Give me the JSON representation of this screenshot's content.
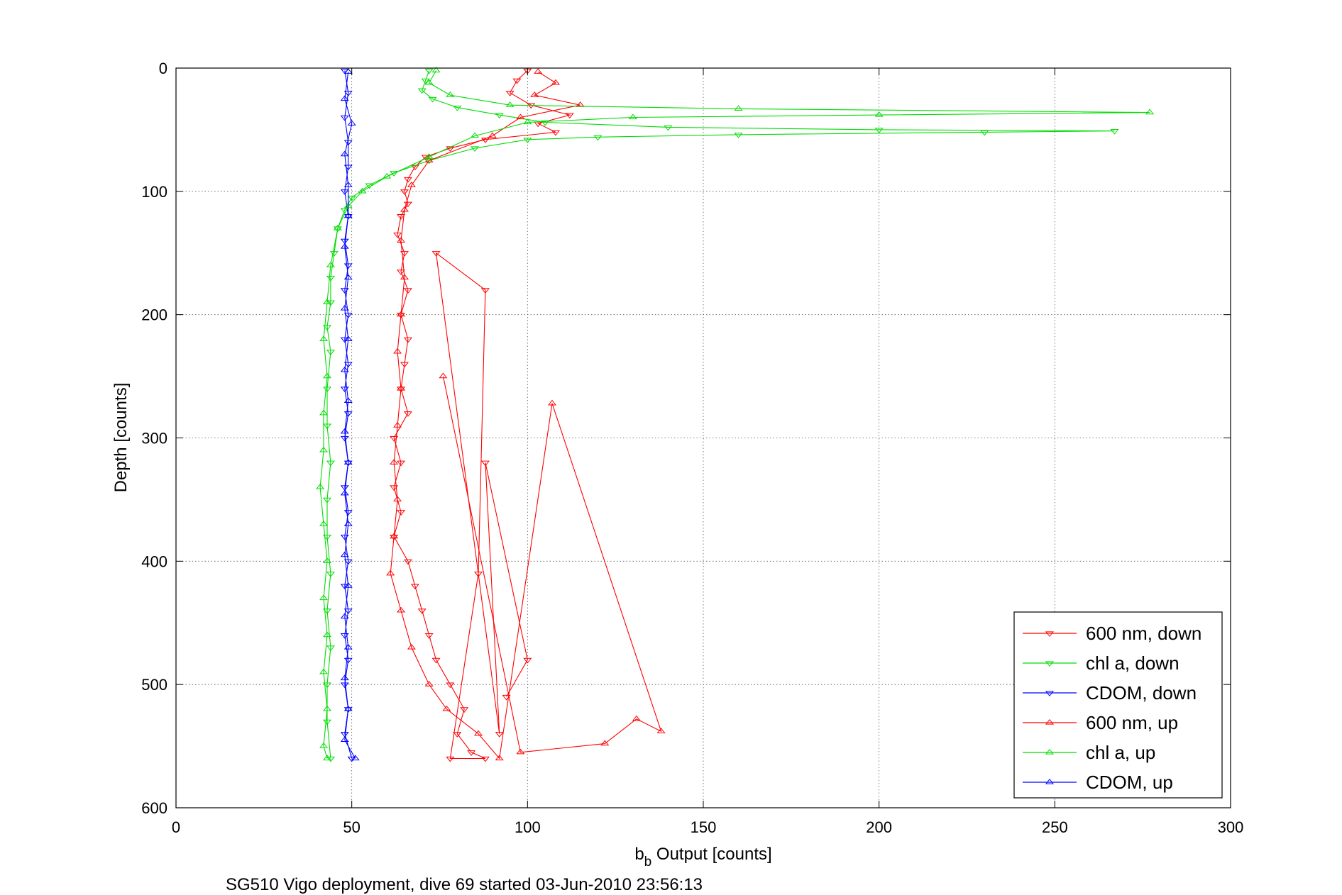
{
  "chart_data": {
    "type": "scatter",
    "title": "",
    "xlabel_main": "b",
    "xlabel_sub": "b",
    "xlabel_rest": " Output [counts]",
    "ylabel": "Depth [counts]",
    "footer": "SG510 Vigo deployment, dive 69 started 03-Jun-2010 23:56:13",
    "xlim": [
      0,
      300
    ],
    "ylim": [
      0,
      600
    ],
    "y_reversed": true,
    "grid": true,
    "xticks": [
      "0",
      "50",
      "100",
      "150",
      "200",
      "250",
      "300"
    ],
    "yticks": [
      "0",
      "100",
      "200",
      "300",
      "400",
      "500",
      "600"
    ],
    "legend_position": "bottom-right",
    "series": [
      {
        "name": "600 nm, down",
        "color": "#ff0000",
        "marker": "triangle-down",
        "points": [
          [
            100,
            2
          ],
          [
            97,
            10
          ],
          [
            95,
            20
          ],
          [
            101,
            30
          ],
          [
            112,
            38
          ],
          [
            103,
            45
          ],
          [
            108,
            52
          ],
          [
            88,
            58
          ],
          [
            78,
            65
          ],
          [
            71,
            72
          ],
          [
            68,
            80
          ],
          [
            66,
            90
          ],
          [
            65,
            100
          ],
          [
            66,
            110
          ],
          [
            64,
            120
          ],
          [
            63,
            135
          ],
          [
            65,
            150
          ],
          [
            64,
            165
          ],
          [
            66,
            180
          ],
          [
            64,
            200
          ],
          [
            66,
            220
          ],
          [
            65,
            240
          ],
          [
            64,
            260
          ],
          [
            66,
            280
          ],
          [
            62,
            300
          ],
          [
            64,
            320
          ],
          [
            62,
            340
          ],
          [
            64,
            360
          ],
          [
            62,
            380
          ],
          [
            66,
            400
          ],
          [
            68,
            420
          ],
          [
            70,
            440
          ],
          [
            72,
            460
          ],
          [
            74,
            480
          ],
          [
            78,
            500
          ],
          [
            82,
            520
          ],
          [
            80,
            540
          ],
          [
            84,
            555
          ],
          [
            88,
            560
          ],
          [
            78,
            560
          ],
          [
            86,
            410
          ],
          [
            88,
            180
          ],
          [
            74,
            150
          ],
          [
            92,
            540
          ],
          [
            88,
            320
          ],
          [
            100,
            480
          ],
          [
            94,
            510
          ]
        ]
      },
      {
        "name": "chl a, down",
        "color": "#00dd00",
        "marker": "triangle-down",
        "points": [
          [
            72,
            2
          ],
          [
            71,
            10
          ],
          [
            70,
            18
          ],
          [
            73,
            25
          ],
          [
            80,
            32
          ],
          [
            92,
            38
          ],
          [
            105,
            44
          ],
          [
            140,
            48
          ],
          [
            200,
            50
          ],
          [
            267,
            51
          ],
          [
            230,
            52
          ],
          [
            160,
            54
          ],
          [
            120,
            56
          ],
          [
            100,
            58
          ],
          [
            85,
            65
          ],
          [
            72,
            75
          ],
          [
            62,
            85
          ],
          [
            55,
            95
          ],
          [
            50,
            105
          ],
          [
            48,
            115
          ],
          [
            46,
            130
          ],
          [
            45,
            150
          ],
          [
            44,
            170
          ],
          [
            44,
            190
          ],
          [
            43,
            210
          ],
          [
            44,
            230
          ],
          [
            43,
            260
          ],
          [
            43,
            290
          ],
          [
            44,
            320
          ],
          [
            43,
            350
          ],
          [
            43,
            380
          ],
          [
            44,
            410
          ],
          [
            43,
            440
          ],
          [
            44,
            470
          ],
          [
            43,
            500
          ],
          [
            43,
            530
          ],
          [
            44,
            560
          ]
        ]
      },
      {
        "name": "CDOM, down",
        "color": "#0000ff",
        "marker": "triangle-down",
        "points": [
          [
            48,
            2
          ],
          [
            49,
            20
          ],
          [
            48,
            40
          ],
          [
            49,
            60
          ],
          [
            49,
            80
          ],
          [
            48,
            100
          ],
          [
            49,
            120
          ],
          [
            48,
            140
          ],
          [
            49,
            160
          ],
          [
            48,
            180
          ],
          [
            49,
            200
          ],
          [
            48,
            220
          ],
          [
            49,
            240
          ],
          [
            48,
            260
          ],
          [
            49,
            280
          ],
          [
            48,
            300
          ],
          [
            49,
            320
          ],
          [
            48,
            340
          ],
          [
            49,
            360
          ],
          [
            48,
            380
          ],
          [
            49,
            400
          ],
          [
            48,
            420
          ],
          [
            49,
            440
          ],
          [
            48,
            460
          ],
          [
            49,
            480
          ],
          [
            48,
            500
          ],
          [
            49,
            520
          ],
          [
            48,
            540
          ],
          [
            50,
            560
          ]
        ]
      },
      {
        "name": "600 nm, up",
        "color": "#ff0000",
        "marker": "triangle-up",
        "points": [
          [
            103,
            3
          ],
          [
            108,
            12
          ],
          [
            102,
            22
          ],
          [
            115,
            30
          ],
          [
            98,
            40
          ],
          [
            90,
            55
          ],
          [
            72,
            75
          ],
          [
            67,
            95
          ],
          [
            65,
            115
          ],
          [
            64,
            140
          ],
          [
            65,
            170
          ],
          [
            64,
            200
          ],
          [
            63,
            230
          ],
          [
            64,
            260
          ],
          [
            63,
            290
          ],
          [
            62,
            320
          ],
          [
            63,
            350
          ],
          [
            62,
            380
          ],
          [
            61,
            410
          ],
          [
            64,
            440
          ],
          [
            67,
            470
          ],
          [
            72,
            500
          ],
          [
            77,
            520
          ],
          [
            86,
            540
          ],
          [
            92,
            560
          ],
          [
            107,
            272
          ],
          [
            138,
            538
          ],
          [
            131,
            528
          ],
          [
            122,
            548
          ],
          [
            98,
            555
          ],
          [
            76,
            250
          ]
        ]
      },
      {
        "name": "chl a, up",
        "color": "#00dd00",
        "marker": "triangle-up",
        "points": [
          [
            74,
            2
          ],
          [
            72,
            12
          ],
          [
            78,
            22
          ],
          [
            95,
            30
          ],
          [
            160,
            33
          ],
          [
            277,
            36
          ],
          [
            200,
            38
          ],
          [
            130,
            40
          ],
          [
            100,
            44
          ],
          [
            85,
            55
          ],
          [
            72,
            72
          ],
          [
            60,
            88
          ],
          [
            53,
            100
          ],
          [
            49,
            112
          ],
          [
            46,
            130
          ],
          [
            44,
            160
          ],
          [
            43,
            190
          ],
          [
            42,
            220
          ],
          [
            43,
            250
          ],
          [
            42,
            280
          ],
          [
            42,
            310
          ],
          [
            41,
            340
          ],
          [
            42,
            370
          ],
          [
            43,
            400
          ],
          [
            42,
            430
          ],
          [
            43,
            460
          ],
          [
            42,
            490
          ],
          [
            43,
            520
          ],
          [
            42,
            550
          ],
          [
            43,
            560
          ]
        ]
      },
      {
        "name": "CDOM, up",
        "color": "#0000ff",
        "marker": "triangle-up",
        "points": [
          [
            49,
            3
          ],
          [
            48,
            25
          ],
          [
            50,
            45
          ],
          [
            48,
            70
          ],
          [
            49,
            95
          ],
          [
            49,
            120
          ],
          [
            48,
            145
          ],
          [
            49,
            170
          ],
          [
            48,
            195
          ],
          [
            49,
            220
          ],
          [
            48,
            245
          ],
          [
            49,
            270
          ],
          [
            48,
            295
          ],
          [
            49,
            320
          ],
          [
            48,
            345
          ],
          [
            49,
            370
          ],
          [
            48,
            395
          ],
          [
            49,
            420
          ],
          [
            48,
            445
          ],
          [
            49,
            470
          ],
          [
            48,
            495
          ],
          [
            49,
            520
          ],
          [
            48,
            545
          ],
          [
            51,
            560
          ]
        ]
      }
    ]
  }
}
